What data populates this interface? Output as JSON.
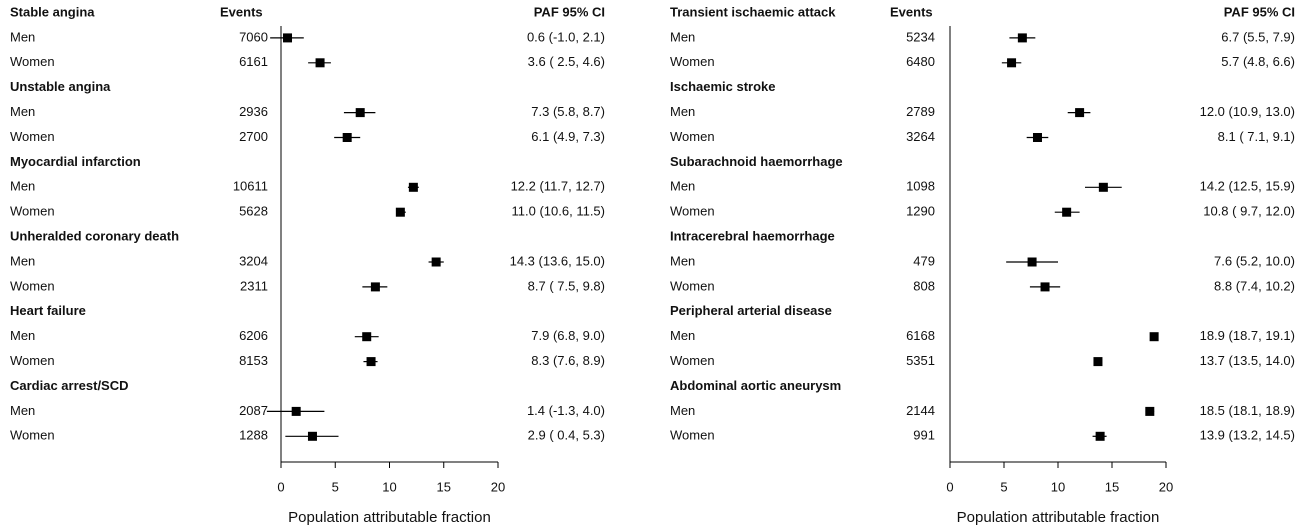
{
  "chart_data": [
    {
      "type": "forest",
      "events_header": "Events",
      "ci_header": "PAF  95% CI",
      "x_label": "Population attributable fraction",
      "xlim": [
        0,
        20
      ],
      "xticks": [
        0,
        5,
        10,
        15,
        20
      ],
      "color": "#000000",
      "groups": [
        {
          "name": "Stable angina",
          "rows": [
            {
              "label": "Men",
              "events": 7060,
              "value": 0.6,
              "lower": -1.0,
              "upper": 2.1,
              "value_label": "0.6 (-1.0, 2.1)"
            },
            {
              "label": "Women",
              "events": 6161,
              "value": 3.6,
              "lower": 2.5,
              "upper": 4.6,
              "value_label": "3.6 ( 2.5, 4.6)"
            }
          ]
        },
        {
          "name": "Unstable angina",
          "rows": [
            {
              "label": "Men",
              "events": 2936,
              "value": 7.3,
              "lower": 5.8,
              "upper": 8.7,
              "value_label": "7.3 (5.8, 8.7)"
            },
            {
              "label": "Women",
              "events": 2700,
              "value": 6.1,
              "lower": 4.9,
              "upper": 7.3,
              "value_label": "6.1 (4.9, 7.3)"
            }
          ]
        },
        {
          "name": "Myocardial infarction",
          "rows": [
            {
              "label": "Men",
              "events": 10611,
              "value": 12.2,
              "lower": 11.7,
              "upper": 12.7,
              "value_label": "12.2 (11.7, 12.7)"
            },
            {
              "label": "Women",
              "events": 5628,
              "value": 11.0,
              "lower": 10.6,
              "upper": 11.5,
              "value_label": "11.0 (10.6, 11.5)"
            }
          ]
        },
        {
          "name": "Unheralded coronary death",
          "rows": [
            {
              "label": "Men",
              "events": 3204,
              "value": 14.3,
              "lower": 13.6,
              "upper": 15.0,
              "value_label": "14.3 (13.6, 15.0)"
            },
            {
              "label": "Women",
              "events": 2311,
              "value": 8.7,
              "lower": 7.5,
              "upper": 9.8,
              "value_label": "8.7 ( 7.5,  9.8)"
            }
          ]
        },
        {
          "name": "Heart failure",
          "rows": [
            {
              "label": "Men",
              "events": 6206,
              "value": 7.9,
              "lower": 6.8,
              "upper": 9.0,
              "value_label": "7.9 (6.8, 9.0)"
            },
            {
              "label": "Women",
              "events": 8153,
              "value": 8.3,
              "lower": 7.6,
              "upper": 8.9,
              "value_label": "8.3 (7.6, 8.9)"
            }
          ]
        },
        {
          "name": "Cardiac arrest/SCD",
          "rows": [
            {
              "label": "Men",
              "events": 2087,
              "value": 1.4,
              "lower": -1.3,
              "upper": 4.0,
              "value_label": "1.4 (-1.3, 4.0)"
            },
            {
              "label": "Women",
              "events": 1288,
              "value": 2.9,
              "lower": 0.4,
              "upper": 5.3,
              "value_label": "2.9 ( 0.4, 5.3)"
            }
          ]
        }
      ]
    },
    {
      "type": "forest",
      "events_header": "Events",
      "ci_header": "PAF  95% CI",
      "x_label": "Population attributable fraction",
      "xlim": [
        0,
        20
      ],
      "xticks": [
        0,
        5,
        10,
        15,
        20
      ],
      "color": "#000000",
      "groups": [
        {
          "name": "Transient ischaemic attack",
          "rows": [
            {
              "label": "Men",
              "events": 5234,
              "value": 6.7,
              "lower": 5.5,
              "upper": 7.9,
              "value_label": "6.7 (5.5, 7.9)"
            },
            {
              "label": "Women",
              "events": 6480,
              "value": 5.7,
              "lower": 4.8,
              "upper": 6.6,
              "value_label": "5.7 (4.8, 6.6)"
            }
          ]
        },
        {
          "name": "Ischaemic stroke",
          "rows": [
            {
              "label": "Men",
              "events": 2789,
              "value": 12.0,
              "lower": 10.9,
              "upper": 13.0,
              "value_label": "12.0 (10.9, 13.0)"
            },
            {
              "label": "Women",
              "events": 3264,
              "value": 8.1,
              "lower": 7.1,
              "upper": 9.1,
              "value_label": "8.1 ( 7.1,  9.1)"
            }
          ]
        },
        {
          "name": "Subarachnoid haemorrhage",
          "rows": [
            {
              "label": "Men",
              "events": 1098,
              "value": 14.2,
              "lower": 12.5,
              "upper": 15.9,
              "value_label": "14.2 (12.5, 15.9)"
            },
            {
              "label": "Women",
              "events": 1290,
              "value": 10.8,
              "lower": 9.7,
              "upper": 12.0,
              "value_label": "10.8 ( 9.7, 12.0)"
            }
          ]
        },
        {
          "name": "Intracerebral haemorrhage",
          "rows": [
            {
              "label": "Men",
              "events": 479,
              "value": 7.6,
              "lower": 5.2,
              "upper": 10.0,
              "value_label": "7.6 (5.2, 10.0)"
            },
            {
              "label": "Women",
              "events": 808,
              "value": 8.8,
              "lower": 7.4,
              "upper": 10.2,
              "value_label": "8.8 (7.4, 10.2)"
            }
          ]
        },
        {
          "name": "Peripheral arterial disease",
          "rows": [
            {
              "label": "Men",
              "events": 6168,
              "value": 18.9,
              "lower": 18.7,
              "upper": 19.1,
              "value_label": "18.9 (18.7, 19.1)"
            },
            {
              "label": "Women",
              "events": 5351,
              "value": 13.7,
              "lower": 13.5,
              "upper": 14.0,
              "value_label": "13.7 (13.5, 14.0)"
            }
          ]
        },
        {
          "name": "Abdominal aortic aneurysm",
          "rows": [
            {
              "label": "Men",
              "events": 2144,
              "value": 18.5,
              "lower": 18.1,
              "upper": 18.9,
              "value_label": "18.5 (18.1, 18.9)"
            },
            {
              "label": "Women",
              "events": 991,
              "value": 13.9,
              "lower": 13.2,
              "upper": 14.5,
              "value_label": "13.9 (13.2, 14.5)"
            }
          ]
        }
      ]
    }
  ]
}
